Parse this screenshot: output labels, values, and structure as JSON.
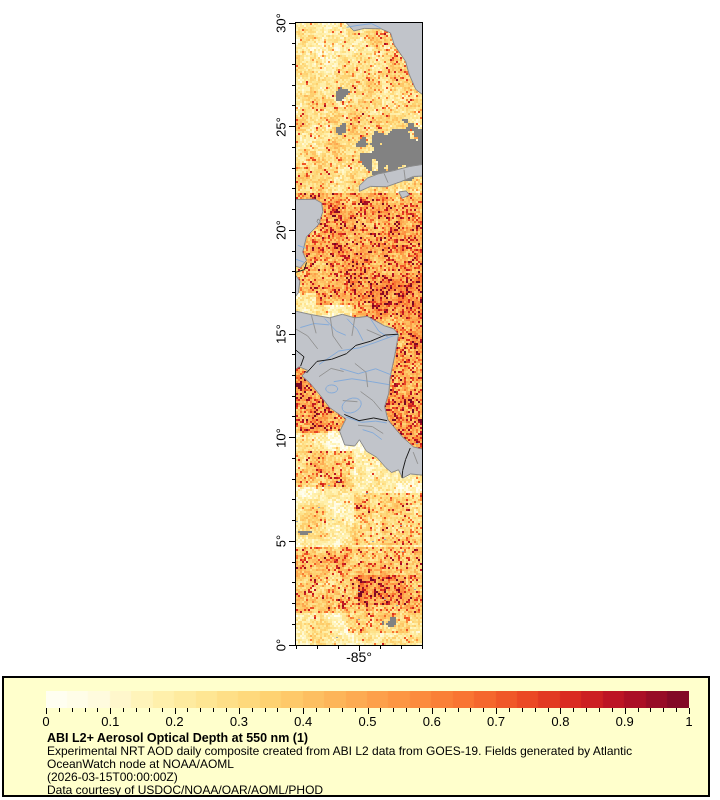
{
  "map": {
    "y_tick_labels": [
      "30°",
      "25°",
      "20°",
      "15°",
      "10°",
      "5°",
      "0°"
    ],
    "x_tick_label": "-85°",
    "extent": {
      "lon_min": -88,
      "lon_max": -82,
      "lat_min": 0,
      "lat_max": 30
    },
    "colors": {
      "land": "#c1c4ca",
      "land_stroke": "#8a8a8a",
      "cloud": "#828282",
      "river": "#85abd9",
      "admin": "#949494",
      "border": "#1c1c1c",
      "frame": "#000000",
      "stray_pixel": "#9aa7b8"
    },
    "colormap": [
      [
        0.0,
        "#fffff6"
      ],
      [
        0.08,
        "#fffbe0"
      ],
      [
        0.16,
        "#fff3b4"
      ],
      [
        0.26,
        "#fee48f"
      ],
      [
        0.36,
        "#fed06e"
      ],
      [
        0.46,
        "#fdb257"
      ],
      [
        0.56,
        "#fd9341"
      ],
      [
        0.66,
        "#f87230"
      ],
      [
        0.74,
        "#ed4d25"
      ],
      [
        0.82,
        "#d92a20"
      ],
      [
        0.9,
        "#b51025"
      ],
      [
        1.0,
        "#790825"
      ]
    ]
  },
  "legend": {
    "bg": "#ffffcc",
    "scale_min": 0,
    "scale_max": 1,
    "tick_labels": [
      "0",
      "0.1",
      "0.2",
      "0.3",
      "0.4",
      "0.5",
      "0.6",
      "0.7",
      "0.8",
      "0.9",
      "1"
    ],
    "title": "ABI L2+ Aerosol Optical Depth at 550 nm (1)",
    "lines": [
      "Experimental NRT AOD daily composite created from ABI L2 data from GOES-19. Fields generated by Atlantic",
      "OceanWatch node at NOAA/AOML",
      "(2026-03-15T00:00:00Z)",
      "Data courtesy of USDOC/NOAA/OAR/AOML/PHOD"
    ]
  }
}
